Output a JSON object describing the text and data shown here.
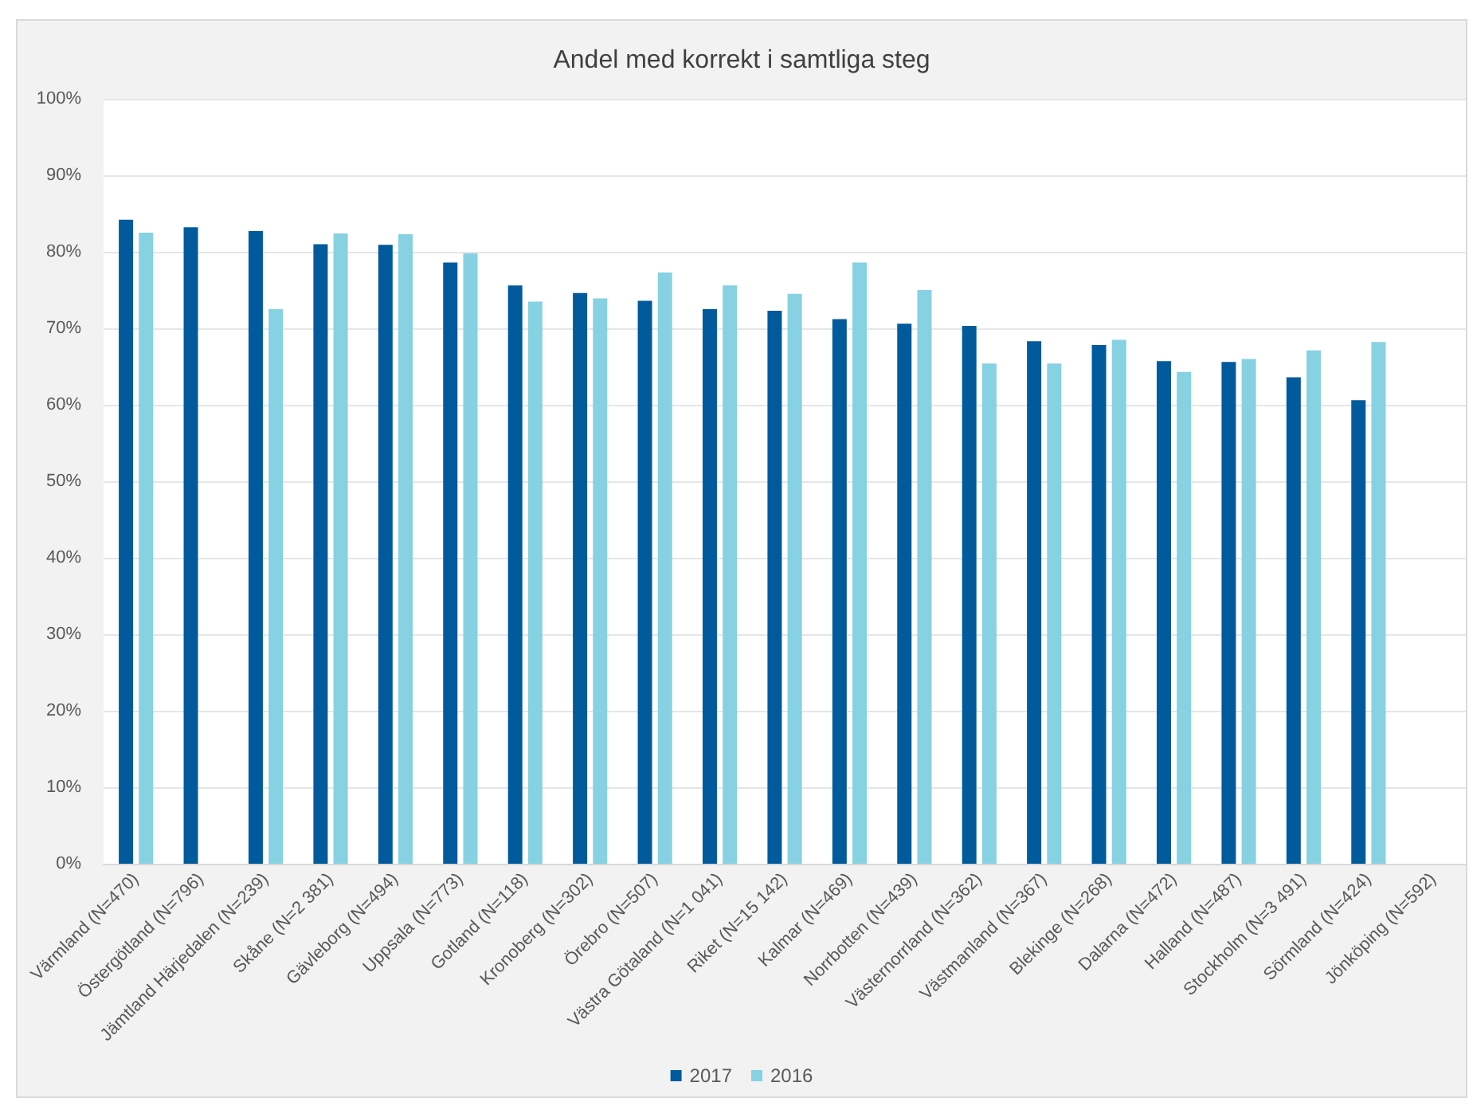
{
  "chart_data": {
    "type": "bar",
    "title": "Andel med korrekt i samtliga steg",
    "categories": [
      "Värmland (N=470)",
      "Östergötland (N=796)",
      "Jämtland Härjedalen (N=239)",
      "Skåne (N=2 381)",
      "Gävleborg (N=494)",
      "Uppsala (N=773)",
      "Gotland (N=118)",
      "Kronoberg (N=302)",
      "Örebro (N=507)",
      "Västra Götaland (N=1 041)",
      "Riket (N=15 142)",
      "Kalmar (N=469)",
      "Norrbotten (N=439)",
      "Västernorrland (N=362)",
      "Västmanland (N=367)",
      "Blekinge (N=268)",
      "Dalarna (N=472)",
      "Halland (N=487)",
      "Stockholm (N=3 491)",
      "Sörmland (N=424)",
      "Jönköping (N=592)"
    ],
    "series": [
      {
        "name": "2017",
        "color": "#005a9c",
        "values": [
          84.2,
          83.2,
          82.7,
          81.0,
          80.9,
          78.6,
          75.6,
          74.6,
          73.6,
          72.5,
          72.3,
          71.2,
          70.6,
          70.3,
          68.3,
          67.8,
          65.7,
          65.6,
          63.6,
          60.6,
          null
        ]
      },
      {
        "name": "2016",
        "color": "#86d1e2",
        "values": [
          82.5,
          null,
          72.5,
          82.4,
          82.3,
          79.8,
          73.5,
          73.9,
          77.3,
          75.6,
          74.5,
          78.6,
          75.0,
          65.4,
          65.4,
          68.5,
          64.3,
          66.0,
          67.1,
          68.2,
          null
        ]
      }
    ],
    "ylim": [
      0,
      100
    ],
    "yticks": [
      {
        "value": 0,
        "label": "0%"
      },
      {
        "value": 10,
        "label": "10%"
      },
      {
        "value": 20,
        "label": "20%"
      },
      {
        "value": 30,
        "label": "30%"
      },
      {
        "value": 40,
        "label": "40%"
      },
      {
        "value": 50,
        "label": "50%"
      },
      {
        "value": 60,
        "label": "60%"
      },
      {
        "value": 70,
        "label": "70%"
      },
      {
        "value": 80,
        "label": "80%"
      },
      {
        "value": 90,
        "label": "90%"
      },
      {
        "value": 100,
        "label": "100%"
      }
    ],
    "grid": "y",
    "legend": "bottom"
  }
}
